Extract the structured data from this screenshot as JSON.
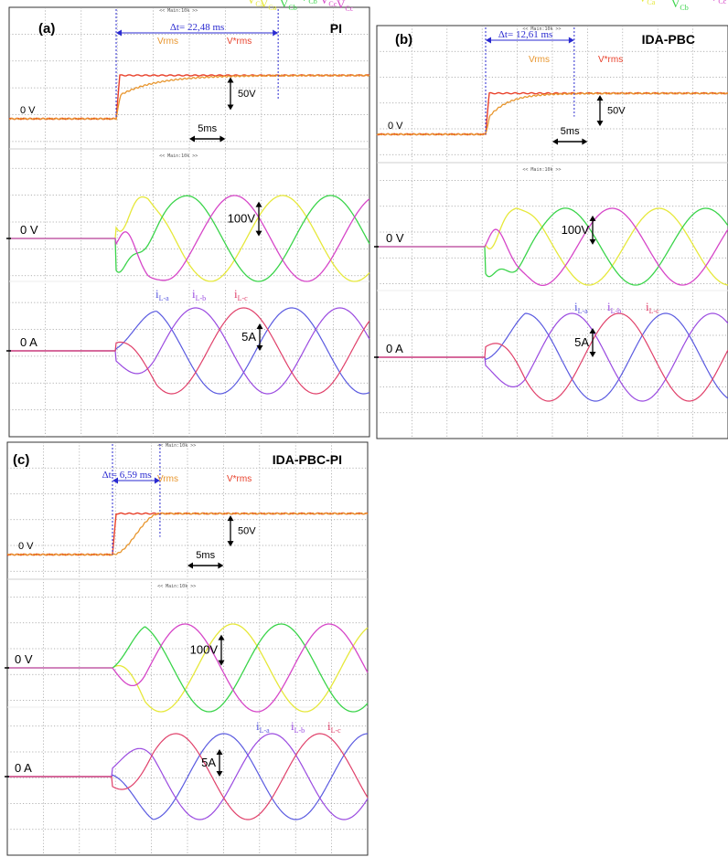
{
  "chart_data": [
    {
      "type": "line",
      "panel_label": "(a)",
      "controller": "PI",
      "settling_label": "Δt= 22,48 ms",
      "settling_time_ms": 22.48,
      "time_scale_label": "5ms",
      "time_div_ms": 5,
      "rms_panel": {
        "zero_label": "0 V",
        "scale_label": "50V",
        "scale_per_div_V": 50,
        "legend": [
          "Vrms",
          "V*rms"
        ],
        "step_ms": 0
      },
      "voltage_panel": {
        "zero_label": "0 V",
        "scale_label": "100V",
        "scale_per_div_V": 100,
        "phase_labels": [
          "VCa",
          "VCb",
          "VCc"
        ]
      },
      "current_panel": {
        "zero_label": "0 A",
        "scale_label": "5A",
        "scale_per_div_A": 5,
        "phase_labels": [
          "iL-a",
          "iL-b",
          "iL-c"
        ]
      }
    },
    {
      "type": "line",
      "panel_label": "(b)",
      "controller": "IDA-PBC",
      "settling_label": "Δt= 12,61 ms",
      "settling_time_ms": 12.61,
      "time_scale_label": "5ms",
      "time_div_ms": 5,
      "rms_panel": {
        "zero_label": "0 V",
        "scale_label": "50V",
        "scale_per_div_V": 50,
        "legend": [
          "Vrms",
          "V*rms"
        ],
        "step_ms": 0
      },
      "voltage_panel": {
        "zero_label": "0 V",
        "scale_label": "100V",
        "scale_per_div_V": 100,
        "phase_labels": [
          "VCa",
          "VCb",
          "VCc"
        ]
      },
      "current_panel": {
        "zero_label": "0 A",
        "scale_label": "5A",
        "scale_per_div_A": 5,
        "phase_labels": [
          "iL-a",
          "iL-b",
          "iL-c"
        ]
      }
    },
    {
      "type": "line",
      "panel_label": "(c)",
      "controller": "IDA-PBC-PI",
      "settling_label": "Δt= 6,59 ms",
      "settling_time_ms": 6.59,
      "time_scale_label": "5ms",
      "time_div_ms": 5,
      "rms_panel": {
        "zero_label": "0 V",
        "scale_label": "50V",
        "scale_per_div_V": 50,
        "legend": [
          "Vrms",
          "V*rms"
        ],
        "step_ms": 0
      },
      "voltage_panel": {
        "zero_label": "0 V",
        "scale_label": "100V",
        "scale_per_div_V": 100,
        "phase_labels": [
          "VCa",
          "VCb",
          "VCc"
        ]
      },
      "current_panel": {
        "zero_label": "0 A",
        "scale_label": "5A",
        "scale_per_div_A": 5,
        "phase_labels": [
          "iL-a",
          "iL-b",
          "iL-c"
        ]
      }
    }
  ],
  "colors": {
    "vrms": "#e8962e",
    "vref": "#e8402a",
    "vca": "#e6e83a",
    "vcb": "#3ad44a",
    "vcc": "#d646c8",
    "ila": "#5a5ae0",
    "ilb": "#9a4ae0",
    "ilc": "#e0406a",
    "delta_marker": "#2a2ad0",
    "grid": "#9a9a9a"
  }
}
